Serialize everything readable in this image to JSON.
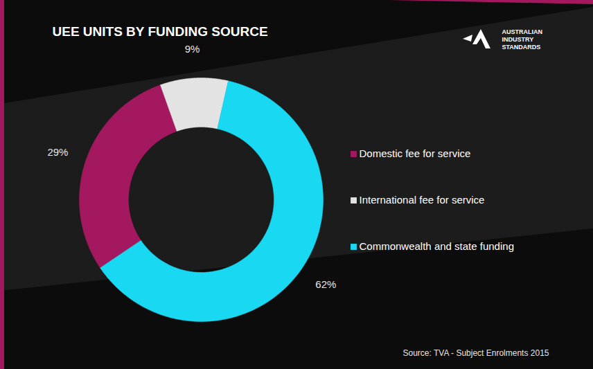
{
  "chart_data": {
    "type": "donut",
    "title": "UEE UNITS BY FUNDING SOURCE",
    "categories": [
      "Domestic fee for service",
      "International fee for service",
      "Commonwealth and state funding"
    ],
    "values": [
      29,
      9,
      62
    ],
    "value_labels": [
      "29%",
      "9%",
      "62%"
    ],
    "colors": [
      "#a3185f",
      "#e3e3e3",
      "#18d8f2"
    ],
    "data_labels": true,
    "legend": "right",
    "source": "Source: TVA - Subject Enrolments 2015",
    "logo": [
      "AUSTRALIAN",
      "INDUSTRY",
      "STANDARDS"
    ]
  }
}
